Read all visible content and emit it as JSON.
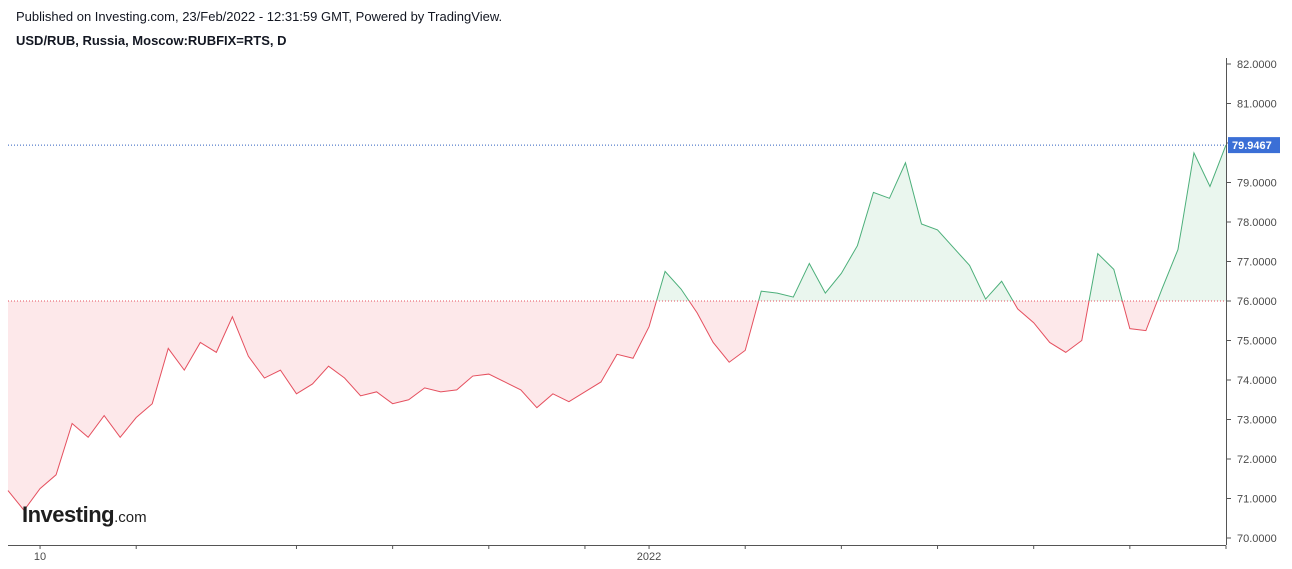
{
  "header": {
    "published": "Published on Investing.com, 23/Feb/2022 - 12:31:59 GMT, Powered by TradingView.",
    "symbol": "USD/RUB, Russia, Moscow:RUBFIX=RTS, D"
  },
  "logo": {
    "name": "Investing",
    "suffix": ".com"
  },
  "chart_data": {
    "type": "area",
    "title": "USD/RUB, Russia, Moscow:RUBFIX=RTS, D",
    "baseline": 76.0,
    "current_value_label": "79.9467",
    "colors": {
      "above_line": "#4caf7a",
      "above_fill": "#eaf6ee",
      "below_line": "#e5505f",
      "below_fill": "#fde8ea",
      "current_line": "#2f5fbf",
      "current_box": "#3b6fd6",
      "baseline_line": "#e5505f"
    },
    "ylim": [
      70.0,
      82.0
    ],
    "y_ticks": [
      "70.0000",
      "71.0000",
      "72.0000",
      "73.0000",
      "74.0000",
      "75.0000",
      "76.0000",
      "77.0000",
      "78.0000",
      "79.0000",
      "80.0000",
      "81.0000",
      "82.0000"
    ],
    "x_tick_labels": [
      {
        "index": 2,
        "label": "10"
      },
      {
        "index": 40,
        "label": "2022"
      }
    ],
    "x_minor_tick_indices": [
      8,
      18,
      24,
      30,
      36,
      46,
      52,
      58,
      64,
      70,
      76
    ],
    "series": [
      {
        "values": [
          71.2,
          70.7,
          71.25,
          71.6,
          72.9,
          72.55,
          73.1,
          72.55,
          73.05,
          73.4,
          74.8,
          74.25,
          74.95,
          74.7,
          75.6,
          74.6,
          74.05,
          74.25,
          73.65,
          73.9,
          74.35,
          74.05,
          73.6,
          73.7,
          73.4,
          73.5,
          73.8,
          73.7,
          73.75,
          74.1,
          74.15,
          73.95,
          73.75,
          73.3,
          73.65,
          73.45,
          73.7,
          73.95,
          74.65,
          74.55,
          75.35,
          76.75,
          76.3,
          75.7,
          74.95,
          74.45,
          74.75,
          76.25,
          76.2,
          76.1,
          76.95,
          76.2,
          76.7,
          77.4,
          78.75,
          78.6,
          79.5,
          77.95,
          77.8,
          77.35,
          76.9,
          76.05,
          76.5,
          75.8,
          75.45,
          74.95,
          74.7,
          75.0,
          77.2,
          76.8,
          75.3,
          75.25,
          76.3,
          77.3,
          79.75,
          78.9,
          79.95
        ]
      }
    ]
  }
}
